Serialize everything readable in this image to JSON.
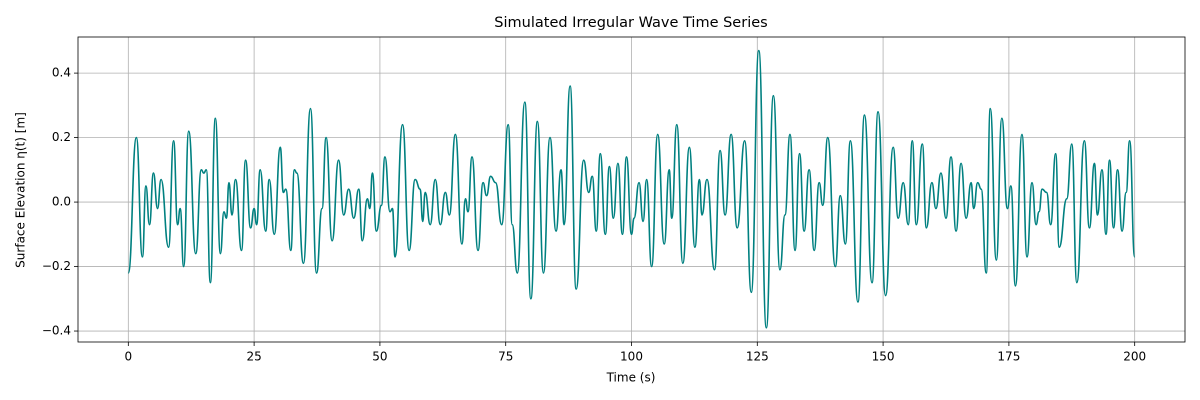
{
  "chart_data": {
    "type": "line",
    "title": "Simulated Irregular Wave Time Series",
    "xlabel": "Time (s)",
    "ylabel": "Surface Elevation η(t) [m]",
    "xlim": [
      -10,
      210
    ],
    "ylim": [
      -0.434,
      0.512
    ],
    "xticks": [
      0,
      25,
      50,
      75,
      100,
      125,
      150,
      175,
      200
    ],
    "yticks": [
      {
        "value": -0.4,
        "label": "−0.4"
      },
      {
        "value": -0.2,
        "label": "−0.2"
      },
      {
        "value": 0,
        "label": "0.0"
      },
      {
        "value": 0.2,
        "label": "0.2"
      },
      {
        "value": 0.4,
        "label": "0.4"
      }
    ],
    "grid": true,
    "series": [
      {
        "color": "#008080",
        "x": [
          0,
          1.6,
          2.8,
          3.5,
          4.2,
          5,
          5.8,
          6.5,
          8,
          9,
          9.8,
          10.3,
          11,
          12,
          13.4,
          14.5,
          15,
          15.5,
          16.3,
          17.3,
          18.3,
          19,
          19.5,
          20,
          20.6,
          21.3,
          22.5,
          23.3,
          24.3,
          25,
          25.5,
          26.2,
          27.3,
          28,
          29,
          30.2,
          30.8,
          31.3,
          32.3,
          33,
          33.5,
          34.8,
          36.2,
          37.4,
          38.5,
          39.3,
          40.5,
          41.8,
          42.8,
          43.8,
          44.8,
          45.8,
          46.5,
          47.5,
          48,
          48.5,
          49.3,
          50.3,
          51,
          52,
          52.5,
          53,
          54.5,
          55.8,
          57,
          58,
          58.5,
          59,
          60,
          61,
          62,
          63,
          63.8,
          65,
          66.3,
          67,
          67.5,
          68.3,
          69.5,
          70.5,
          71.2,
          72,
          73,
          74.2,
          75.5,
          76.3,
          77.3,
          78.8,
          80,
          81.3,
          82.5,
          83.8,
          85,
          86,
          86.6,
          87.8,
          89,
          90.5,
          91.5,
          92.2,
          93,
          93.8,
          94.8,
          95.6,
          96.4,
          97.3,
          98.2,
          99,
          100,
          100.5,
          101.5,
          102.3,
          103,
          104,
          105.2,
          106.5,
          107.5,
          108,
          109,
          110.2,
          111.5,
          112.6,
          113.5,
          114,
          115,
          116.5,
          117.6,
          118.6,
          119.8,
          121,
          122.5,
          123.8,
          125.3,
          126.8,
          128.2,
          129.5,
          130.5,
          131.5,
          132.5,
          133.4,
          134.3,
          135.3,
          136.3,
          137.3,
          138,
          139,
          140.5,
          141.5,
          142.5,
          143.5,
          145,
          146.3,
          147.8,
          149,
          150.5,
          152,
          153,
          154,
          155,
          155.8,
          156.6,
          157.8,
          158.6,
          159.7,
          160.5,
          161.5,
          162.5,
          163.5,
          164.5,
          165.5,
          166.5,
          167.5,
          168,
          168.8,
          169.5,
          170.5,
          171.3,
          172.5,
          173.6,
          174.7,
          175.4,
          176.3,
          177.6,
          178.6,
          179.6,
          180.4,
          181,
          181.6,
          182.5,
          183.3,
          184.3,
          185,
          186.5,
          187.5,
          188.5,
          190,
          191,
          192,
          192.6,
          193.5,
          194.3,
          195,
          195.8,
          196.6,
          197.5,
          198.3,
          199,
          200
        ],
        "values": [
          -0.22,
          0.2,
          -0.17,
          0.05,
          -0.07,
          0.09,
          -0.02,
          0.07,
          -0.14,
          0.19,
          -0.07,
          -0.02,
          -0.2,
          0.22,
          -0.16,
          0.1,
          0.09,
          0.1,
          -0.25,
          0.26,
          -0.16,
          -0.03,
          -0.05,
          0.06,
          -0.04,
          0.07,
          -0.15,
          0.13,
          -0.08,
          -0.02,
          -0.07,
          0.1,
          -0.09,
          0.07,
          -0.1,
          0.17,
          0.03,
          0.04,
          -0.15,
          0.1,
          0.09,
          -0.19,
          0.29,
          -0.22,
          -0.02,
          0.2,
          -0.12,
          0.13,
          -0.04,
          0.04,
          -0.05,
          0.04,
          -0.12,
          0.01,
          -0.02,
          0.09,
          -0.09,
          -0.01,
          0.14,
          -0.03,
          -0.02,
          -0.17,
          0.24,
          -0.15,
          0.07,
          0.04,
          -0.06,
          0.03,
          -0.07,
          0.07,
          -0.07,
          0.03,
          -0.04,
          0.21,
          -0.13,
          0.01,
          -0.03,
          0.14,
          -0.15,
          0.06,
          0.02,
          0.08,
          0.06,
          -0.07,
          0.24,
          -0.07,
          -0.22,
          0.31,
          -0.3,
          0.25,
          -0.22,
          0.2,
          -0.09,
          0.1,
          -0.07,
          0.36,
          -0.27,
          0.13,
          0.03,
          0.08,
          -0.09,
          0.15,
          -0.1,
          0.11,
          -0.05,
          0.12,
          -0.1,
          0.14,
          -0.1,
          -0.05,
          0.06,
          -0.06,
          0.07,
          -0.2,
          0.21,
          -0.13,
          0.1,
          -0.05,
          0.24,
          -0.19,
          0.17,
          -0.14,
          0.07,
          -0.04,
          0.07,
          -0.21,
          0.16,
          -0.04,
          0.21,
          -0.08,
          0.19,
          -0.28,
          0.47,
          -0.39,
          0.33,
          -0.21,
          -0.04,
          0.21,
          -0.15,
          0.15,
          -0.09,
          0.1,
          -0.15,
          0.06,
          -0.01,
          0.2,
          -0.2,
          0.02,
          -0.13,
          0.19,
          -0.31,
          0.27,
          -0.25,
          0.28,
          -0.29,
          0.17,
          -0.05,
          0.06,
          -0.07,
          0.19,
          -0.07,
          0.18,
          -0.08,
          0.06,
          -0.02,
          0.09,
          -0.05,
          0.14,
          -0.09,
          0.12,
          -0.05,
          0.06,
          -0.02,
          0.06,
          0.04,
          -0.22,
          0.29,
          -0.18,
          0.26,
          -0.02,
          0.05,
          -0.26,
          0.21,
          -0.17,
          0.06,
          -0.07,
          -0.03,
          0.04,
          0.03,
          -0.07,
          0.15,
          -0.14,
          0.01,
          0.18,
          -0.25,
          0.19,
          -0.08,
          0.12,
          -0.04,
          0.1,
          -0.1,
          0.13,
          -0.08,
          0.1,
          -0.09,
          0.03,
          0.19,
          -0.17
        ]
      }
    ]
  }
}
